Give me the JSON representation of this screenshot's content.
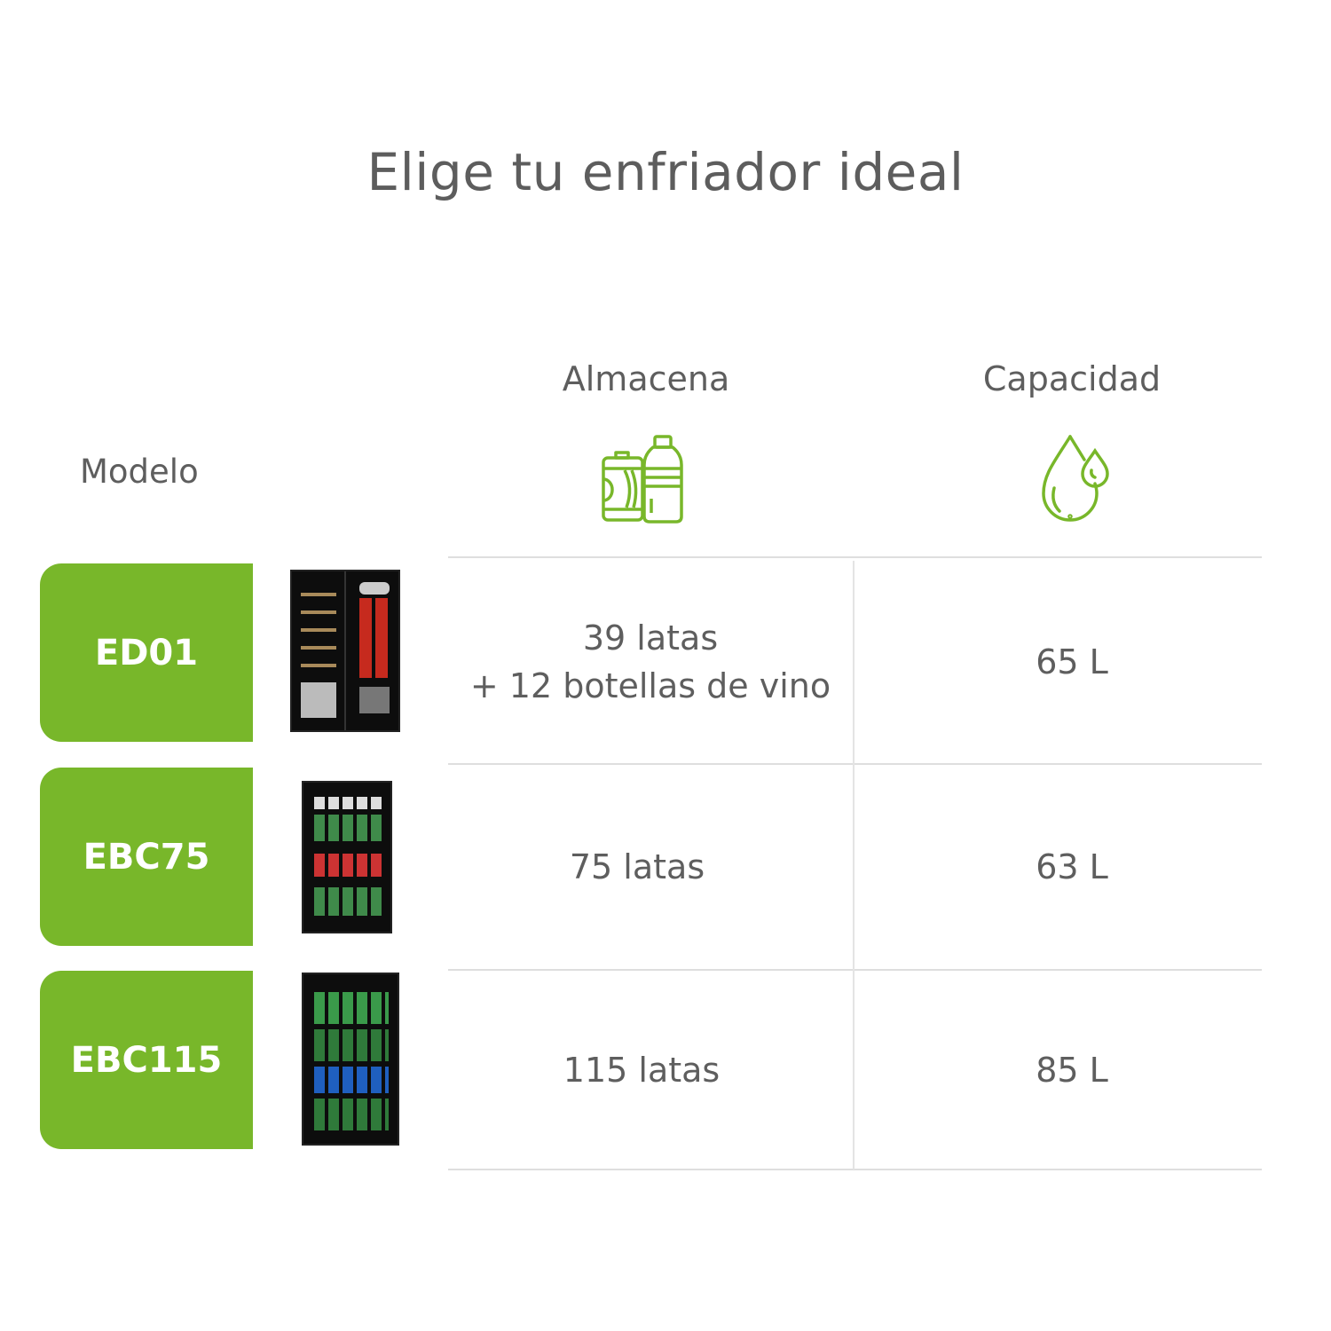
{
  "title": "Elige tu enfriador ideal",
  "headers": {
    "model": "Modelo",
    "storage": "Almacena",
    "capacity": "Capacidad"
  },
  "icons": {
    "storage": "can-and-bottle-icon",
    "capacity": "water-drops-icon"
  },
  "accent_color": "#78b72a",
  "rows": [
    {
      "model": "ED01",
      "storage_line1": "39 latas",
      "storage_line2": "+ 12 botellas de vino",
      "capacity": "65 L"
    },
    {
      "model": "EBC75",
      "storage_line1": "75 latas",
      "storage_line2": "",
      "capacity": "63 L"
    },
    {
      "model": "EBC115",
      "storage_line1": "115 latas",
      "storage_line2": "",
      "capacity": "85 L"
    }
  ]
}
